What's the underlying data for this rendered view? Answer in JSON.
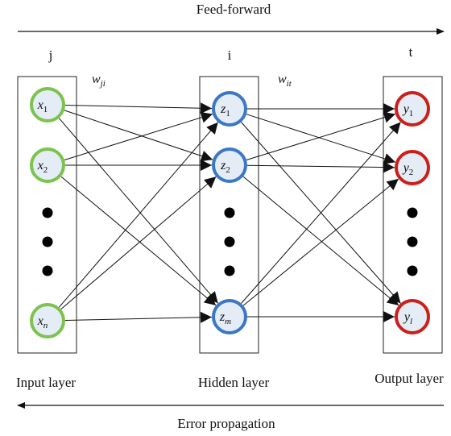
{
  "top_arrow_label": "Feed-forward",
  "bottom_arrow_label": "Error propagation",
  "layers": [
    {
      "index_label": "j",
      "name": "Input layer",
      "nodes": [
        {
          "sym": "x",
          "sub": "1"
        },
        {
          "sym": "x",
          "sub": "2"
        },
        {
          "sym": "x",
          "sub": "n"
        }
      ]
    },
    {
      "index_label": "i",
      "name": "Hidden layer",
      "nodes": [
        {
          "sym": "z",
          "sub": "1"
        },
        {
          "sym": "z",
          "sub": "2"
        },
        {
          "sym": "z",
          "sub": "m"
        }
      ]
    },
    {
      "index_label": "t",
      "name": "Output layer",
      "nodes": [
        {
          "sym": "y",
          "sub": "1"
        },
        {
          "sym": "y",
          "sub": "2"
        },
        {
          "sym": "y",
          "sub": "l"
        }
      ]
    }
  ],
  "weights": [
    {
      "sym": "w",
      "sub": "ji"
    },
    {
      "sym": "w",
      "sub": "it"
    }
  ],
  "colors": {
    "input_fill": "#e4ecf6",
    "input_ring": "#7cc24e",
    "hidden_fill": "#e4ecf6",
    "hidden_ring": "#3b78c4",
    "output_fill": "#e4ecf6",
    "output_ring": "#cc1f1a",
    "line": "#111111"
  }
}
